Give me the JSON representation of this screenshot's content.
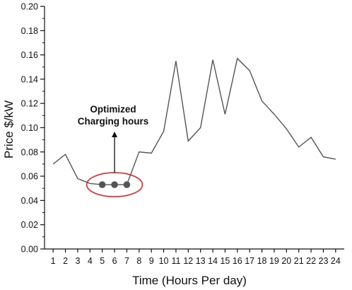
{
  "chart_data": {
    "type": "line",
    "title": "",
    "xlabel": "Time (Hours Per day)",
    "ylabel": "Price $/kW",
    "x": [
      1,
      2,
      3,
      4,
      5,
      6,
      7,
      8,
      9,
      10,
      11,
      12,
      13,
      14,
      15,
      16,
      17,
      18,
      19,
      20,
      21,
      22,
      23,
      24
    ],
    "series": [
      {
        "values": [
          0.07,
          0.078,
          0.058,
          0.054,
          0.053,
          0.053,
          0.053,
          0.08,
          0.079,
          0.097,
          0.155,
          0.089,
          0.1,
          0.156,
          0.111,
          0.157,
          0.147,
          0.122,
          0.111,
          0.099,
          0.084,
          0.092,
          0.076,
          0.074
        ]
      }
    ],
    "xlim": [
      0.3,
      24.7
    ],
    "ylim": [
      0,
      0.2
    ],
    "yticks": [
      "0.00",
      "0.02",
      "0.04",
      "0.06",
      "0.08",
      "0.10",
      "0.12",
      "0.14",
      "0.16",
      "0.18",
      "0.20"
    ],
    "xticks": [
      "1",
      "2",
      "3",
      "4",
      "5",
      "6",
      "7",
      "8",
      "9",
      "10",
      "11",
      "12",
      "13",
      "14",
      "15",
      "16",
      "17",
      "18",
      "19",
      "20",
      "21",
      "22",
      "23",
      "24"
    ],
    "highlight_hours": [
      5,
      6,
      7
    ],
    "annotation": {
      "line1": "Optimized",
      "line2": "Charging hours"
    },
    "colors": {
      "line": "#555555",
      "marker": "#555555",
      "ellipse": "#e8232a",
      "axis": "#111111"
    }
  }
}
